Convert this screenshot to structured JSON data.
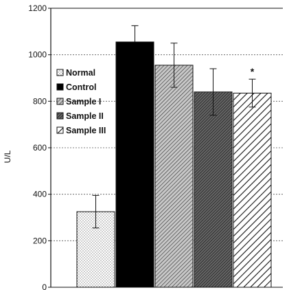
{
  "chart_data": {
    "type": "bar",
    "title": "",
    "xlabel": "",
    "ylabel": "U/L",
    "ylim": [
      0,
      1200
    ],
    "yticks": [
      0,
      200,
      400,
      600,
      800,
      1000,
      1200
    ],
    "grid": "horizontal dashed",
    "legend_position": "left",
    "series": [
      {
        "name": "Normal",
        "value": 325,
        "error": 70,
        "pattern": "dots"
      },
      {
        "name": "Control",
        "value": 1055,
        "error": 70,
        "pattern": "solid"
      },
      {
        "name": "Sample I",
        "value": 955,
        "error": 95,
        "pattern": "fine-hatch"
      },
      {
        "name": "Sample II",
        "value": 840,
        "error": 100,
        "pattern": "dense-hatch"
      },
      {
        "name": "Sample III",
        "value": 835,
        "error": 60,
        "pattern": "wide-hatch"
      }
    ],
    "annotations": [
      {
        "series": "Sample III",
        "text": "*"
      }
    ]
  }
}
